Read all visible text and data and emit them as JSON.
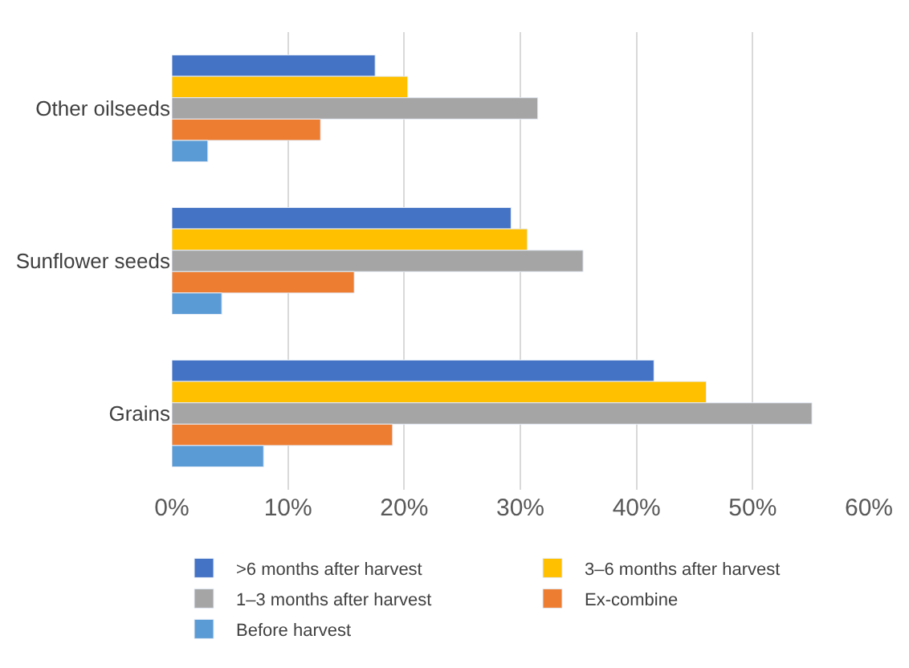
{
  "chart_data": {
    "type": "bar",
    "orientation": "horizontal",
    "categories": [
      "Other oilseeds",
      "Sunflower seeds",
      "Grains"
    ],
    "series": [
      {
        "name": ">6 months after harvest",
        "color": "#4472c4",
        "values": [
          17.5,
          29.2,
          41.5
        ]
      },
      {
        "name": "3–6 months after harvest",
        "color": "#ffc000",
        "values": [
          20.3,
          30.6,
          46.0
        ]
      },
      {
        "name": "1–3 months after harvest",
        "color": "#a5a5a5",
        "values": [
          31.5,
          35.4,
          55.1
        ]
      },
      {
        "name": "Ex-combine",
        "color": "#ed7d31",
        "values": [
          12.8,
          15.7,
          19.0
        ]
      },
      {
        "name": "Before harvest",
        "color": "#5b9bd5",
        "values": [
          3.1,
          4.3,
          7.9
        ]
      }
    ],
    "xlim": [
      0,
      60
    ],
    "xticks": [
      {
        "value": 0,
        "label": "0%"
      },
      {
        "value": 10,
        "label": "10%"
      },
      {
        "value": 20,
        "label": "20%"
      },
      {
        "value": 30,
        "label": "30%"
      },
      {
        "value": 40,
        "label": "40%"
      },
      {
        "value": 50,
        "label": "50%"
      },
      {
        "value": 60,
        "label": "60%"
      }
    ],
    "grid": "x",
    "legend": "bottom"
  }
}
